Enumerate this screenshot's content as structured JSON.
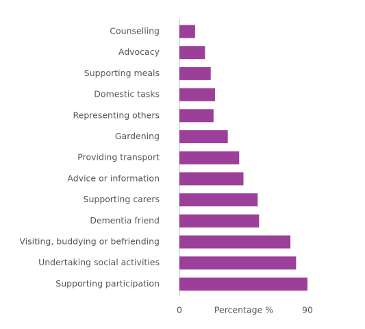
{
  "chart_data": {
    "type": "barh",
    "categories": [
      "Counselling",
      "Advocacy",
      "Supporting meals",
      "Domestic tasks",
      "Representing others",
      "Gardening",
      "Providing transport",
      "Advice or information",
      "Supporting carers",
      "Dementia friend",
      "Visiting, buddying or befriending",
      "Undertaking social activities",
      "Supporting participation"
    ],
    "values": [
      11,
      18,
      22,
      25,
      24,
      34,
      42,
      45,
      55,
      56,
      78,
      82,
      90
    ],
    "color": "#9c3f98",
    "xlabel": "Percentage %",
    "xlim": [
      0,
      90
    ],
    "xticks": [
      0,
      90
    ]
  }
}
